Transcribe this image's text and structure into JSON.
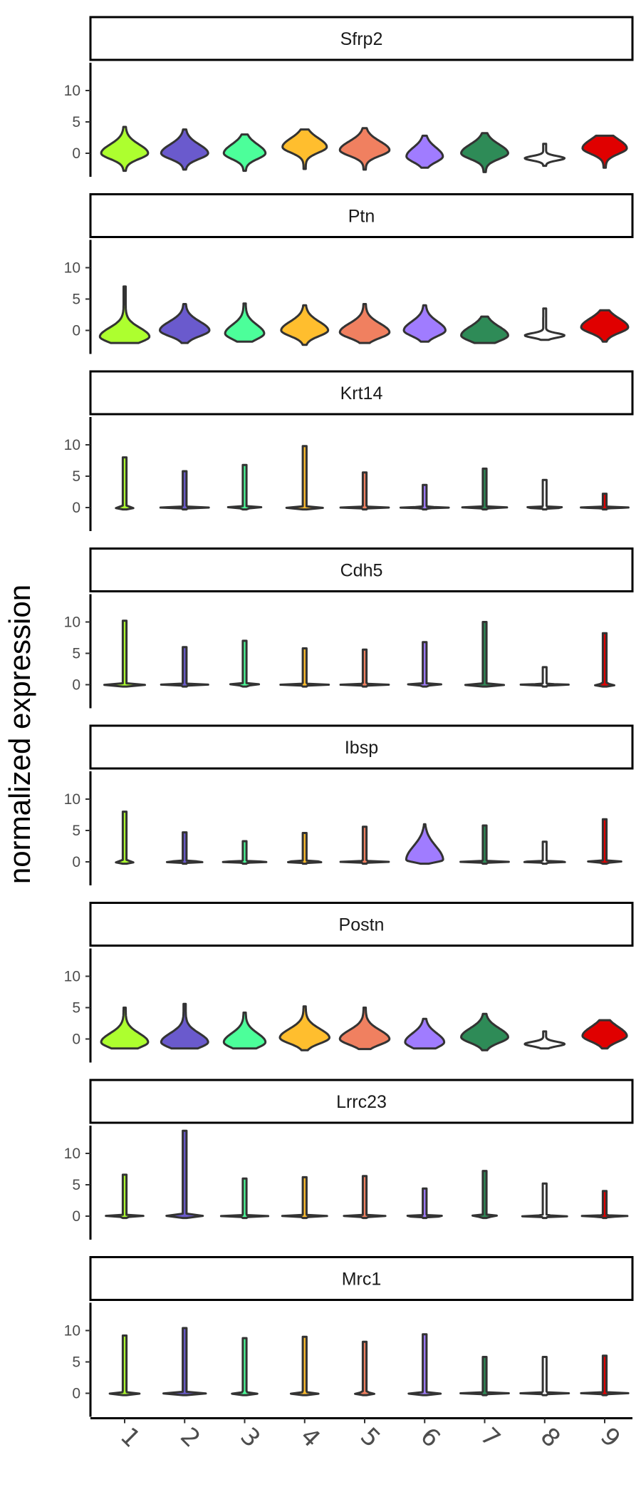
{
  "chart_data": {
    "type": "violin",
    "ylabel": "normalized expression",
    "xlabel": "",
    "categories": [
      "1",
      "2",
      "3",
      "4",
      "5",
      "6",
      "7",
      "8",
      "9"
    ],
    "colors": [
      "#ADFF2F",
      "#6A5ACD",
      "#4CFF9A",
      "#FFBE2E",
      "#F08060",
      "#A07CFF",
      "#2E8B57",
      "#FFFFFF",
      "#E00000"
    ],
    "ylim": [
      -3.5,
      14
    ],
    "yticks": [
      0,
      5,
      10
    ],
    "panels": [
      {
        "gene": "Sfrp2",
        "violins": [
          {
            "min": -2.8,
            "max": 4.2,
            "peak": 0,
            "width": 0.85,
            "shape": "bulb"
          },
          {
            "min": -2.6,
            "max": 3.8,
            "peak": 0,
            "width": 0.85,
            "shape": "bulb"
          },
          {
            "min": -2.8,
            "max": 3.0,
            "peak": 0,
            "width": 0.75,
            "shape": "bulb"
          },
          {
            "min": -2.5,
            "max": 3.8,
            "peak": 1,
            "width": 0.8,
            "shape": "bulb"
          },
          {
            "min": -2.6,
            "max": 4.0,
            "peak": 0.5,
            "width": 0.9,
            "shape": "bulb"
          },
          {
            "min": -2.3,
            "max": 2.8,
            "peak": -0.5,
            "width": 0.65,
            "shape": "bulb"
          },
          {
            "min": -3.0,
            "max": 3.2,
            "peak": 0,
            "width": 0.85,
            "shape": "bulb"
          },
          {
            "min": -2.0,
            "max": 1.5,
            "peak": -0.8,
            "width": 0.7,
            "shape": "flat"
          },
          {
            "min": -2.3,
            "max": 2.8,
            "peak": 0.8,
            "width": 0.8,
            "shape": "bulb"
          }
        ]
      },
      {
        "gene": "Ptn",
        "violins": [
          {
            "min": -2.0,
            "max": 7.0,
            "peak": -1,
            "width": 0.9,
            "shape": "bulb"
          },
          {
            "min": -2.0,
            "max": 4.2,
            "peak": 0,
            "width": 0.9,
            "shape": "bulb"
          },
          {
            "min": -1.8,
            "max": 4.3,
            "peak": -0.5,
            "width": 0.7,
            "shape": "bulb"
          },
          {
            "min": -2.3,
            "max": 4.0,
            "peak": 0,
            "width": 0.85,
            "shape": "bulb"
          },
          {
            "min": -2.0,
            "max": 4.2,
            "peak": -0.3,
            "width": 0.9,
            "shape": "bulb"
          },
          {
            "min": -1.8,
            "max": 4.0,
            "peak": 0,
            "width": 0.75,
            "shape": "bulb"
          },
          {
            "min": -2.0,
            "max": 2.2,
            "peak": -0.8,
            "width": 0.85,
            "shape": "bulb"
          },
          {
            "min": -1.5,
            "max": 3.5,
            "peak": -0.8,
            "width": 0.7,
            "shape": "flat"
          },
          {
            "min": -1.8,
            "max": 3.2,
            "peak": 0.5,
            "width": 0.85,
            "shape": "bulb"
          }
        ]
      },
      {
        "gene": "Krt14",
        "violins": [
          {
            "min": -0.3,
            "max": 8.0,
            "peak": 0,
            "width": 0.85,
            "shape": "spike"
          },
          {
            "min": -0.3,
            "max": 5.8,
            "peak": 0,
            "width": 0.85,
            "shape": "spike"
          },
          {
            "min": -0.3,
            "max": 6.8,
            "peak": 0,
            "width": 0.85,
            "shape": "spike"
          },
          {
            "min": -0.3,
            "max": 9.8,
            "peak": 0,
            "width": 0.85,
            "shape": "spike"
          },
          {
            "min": -0.3,
            "max": 5.6,
            "peak": 0,
            "width": 0.85,
            "shape": "spike"
          },
          {
            "min": -0.3,
            "max": 3.6,
            "peak": 0,
            "width": 0.85,
            "shape": "spike"
          },
          {
            "min": -0.3,
            "max": 6.2,
            "peak": 0,
            "width": 0.85,
            "shape": "spike"
          },
          {
            "min": -0.3,
            "max": 4.4,
            "peak": 0,
            "width": 0.85,
            "shape": "spike"
          },
          {
            "min": -0.3,
            "max": 2.2,
            "peak": 0,
            "width": 0.85,
            "shape": "spike"
          }
        ]
      },
      {
        "gene": "Cdh5",
        "violins": [
          {
            "min": -0.3,
            "max": 10.2,
            "peak": 0,
            "width": 0.85,
            "shape": "spike"
          },
          {
            "min": -0.3,
            "max": 6.0,
            "peak": 0,
            "width": 0.85,
            "shape": "spike"
          },
          {
            "min": -0.3,
            "max": 7.0,
            "peak": 0,
            "width": 0.85,
            "shape": "spike"
          },
          {
            "min": -0.3,
            "max": 5.8,
            "peak": 0,
            "width": 0.85,
            "shape": "spike"
          },
          {
            "min": -0.3,
            "max": 5.6,
            "peak": 0,
            "width": 0.85,
            "shape": "spike"
          },
          {
            "min": -0.3,
            "max": 6.8,
            "peak": 0,
            "width": 0.85,
            "shape": "spike"
          },
          {
            "min": -0.3,
            "max": 10.0,
            "peak": 0,
            "width": 0.85,
            "shape": "spike"
          },
          {
            "min": -0.3,
            "max": 2.8,
            "peak": 0,
            "width": 0.85,
            "shape": "spike"
          },
          {
            "min": -0.3,
            "max": 8.2,
            "peak": 0,
            "width": 0.85,
            "shape": "spike"
          }
        ]
      },
      {
        "gene": "Ibsp",
        "violins": [
          {
            "min": -0.3,
            "max": 8.0,
            "peak": 0,
            "width": 0.85,
            "shape": "spike"
          },
          {
            "min": -0.3,
            "max": 4.7,
            "peak": 0,
            "width": 0.85,
            "shape": "spike"
          },
          {
            "min": -0.3,
            "max": 3.3,
            "peak": 0,
            "width": 0.85,
            "shape": "spike"
          },
          {
            "min": -0.3,
            "max": 4.6,
            "peak": 0,
            "width": 0.85,
            "shape": "spike"
          },
          {
            "min": -0.3,
            "max": 5.6,
            "peak": 0,
            "width": 0.85,
            "shape": "spike"
          },
          {
            "min": -0.3,
            "max": 6.0,
            "peak": 0.3,
            "width": 0.7,
            "shape": "tear"
          },
          {
            "min": -0.3,
            "max": 5.8,
            "peak": 0,
            "width": 0.85,
            "shape": "spike"
          },
          {
            "min": -0.3,
            "max": 3.2,
            "peak": 0,
            "width": 0.85,
            "shape": "spike"
          },
          {
            "min": -0.3,
            "max": 6.8,
            "peak": 0,
            "width": 0.85,
            "shape": "spike"
          }
        ]
      },
      {
        "gene": "Postn",
        "violins": [
          {
            "min": -1.5,
            "max": 5.0,
            "peak": -0.5,
            "width": 0.85,
            "shape": "bulb"
          },
          {
            "min": -1.5,
            "max": 5.6,
            "peak": -0.5,
            "width": 0.85,
            "shape": "bulb"
          },
          {
            "min": -1.5,
            "max": 4.2,
            "peak": -0.5,
            "width": 0.75,
            "shape": "bulb"
          },
          {
            "min": -1.8,
            "max": 5.2,
            "peak": 0.2,
            "width": 0.9,
            "shape": "bulb"
          },
          {
            "min": -1.6,
            "max": 5.0,
            "peak": 0,
            "width": 0.9,
            "shape": "bulb"
          },
          {
            "min": -1.5,
            "max": 3.2,
            "peak": -0.5,
            "width": 0.7,
            "shape": "bulb"
          },
          {
            "min": -1.8,
            "max": 4.0,
            "peak": 0.3,
            "width": 0.85,
            "shape": "bulb"
          },
          {
            "min": -1.5,
            "max": 1.2,
            "peak": -0.8,
            "width": 0.7,
            "shape": "flat"
          },
          {
            "min": -1.5,
            "max": 3.0,
            "peak": 0.5,
            "width": 0.8,
            "shape": "bulb"
          }
        ]
      },
      {
        "gene": "Lrrc23",
        "violins": [
          {
            "min": -0.3,
            "max": 6.6,
            "peak": 0,
            "width": 0.85,
            "shape": "spike"
          },
          {
            "min": -0.3,
            "max": 13.6,
            "peak": 0,
            "width": 0.85,
            "shape": "spike"
          },
          {
            "min": -0.3,
            "max": 6.0,
            "peak": 0,
            "width": 0.85,
            "shape": "spike"
          },
          {
            "min": -0.3,
            "max": 6.2,
            "peak": 0,
            "width": 0.85,
            "shape": "spike"
          },
          {
            "min": -0.3,
            "max": 6.4,
            "peak": 0,
            "width": 0.85,
            "shape": "spike"
          },
          {
            "min": -0.3,
            "max": 4.4,
            "peak": 0,
            "width": 0.85,
            "shape": "spike"
          },
          {
            "min": -0.3,
            "max": 7.2,
            "peak": 0,
            "width": 0.85,
            "shape": "spike"
          },
          {
            "min": -0.3,
            "max": 5.2,
            "peak": 0,
            "width": 0.85,
            "shape": "spike"
          },
          {
            "min": -0.3,
            "max": 4.0,
            "peak": 0,
            "width": 0.85,
            "shape": "spike"
          }
        ]
      },
      {
        "gene": "Mrc1",
        "violins": [
          {
            "min": -0.3,
            "max": 9.2,
            "peak": 0,
            "width": 0.85,
            "shape": "spike"
          },
          {
            "min": -0.3,
            "max": 10.4,
            "peak": 0,
            "width": 0.85,
            "shape": "spike"
          },
          {
            "min": -0.3,
            "max": 8.8,
            "peak": 0,
            "width": 0.85,
            "shape": "spike"
          },
          {
            "min": -0.3,
            "max": 9.0,
            "peak": 0,
            "width": 0.85,
            "shape": "spike"
          },
          {
            "min": -0.3,
            "max": 8.2,
            "peak": 0,
            "width": 0.85,
            "shape": "spike"
          },
          {
            "min": -0.3,
            "max": 9.4,
            "peak": 0,
            "width": 0.85,
            "shape": "spike"
          },
          {
            "min": -0.3,
            "max": 5.8,
            "peak": 0,
            "width": 0.85,
            "shape": "spike"
          },
          {
            "min": -0.3,
            "max": 5.8,
            "peak": 0,
            "width": 0.85,
            "shape": "spike"
          },
          {
            "min": -0.3,
            "max": 6.0,
            "peak": 0,
            "width": 0.85,
            "shape": "spike"
          }
        ]
      }
    ]
  }
}
